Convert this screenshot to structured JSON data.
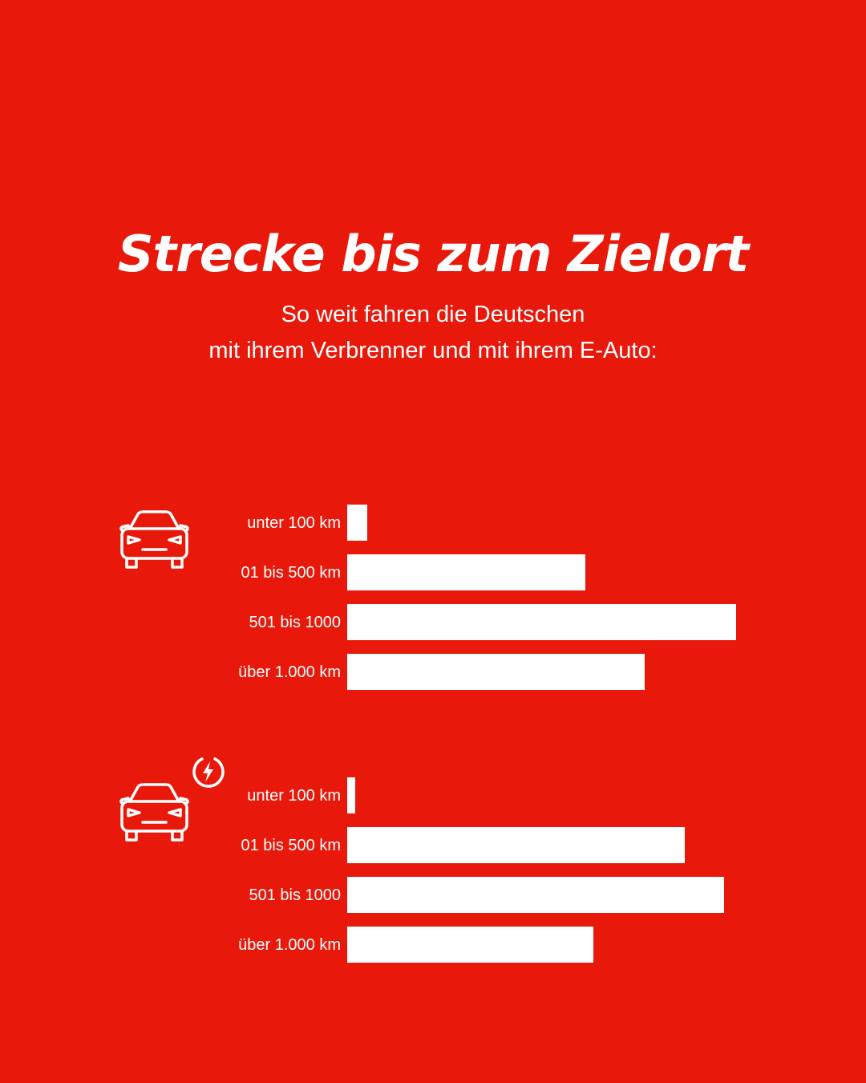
{
  "title": "Strecke bis zum Zielort",
  "subtitle_lines": [
    "So weit fahren die Deutschen",
    "mit ihrem Verbrenner und mit ihrem E-Auto:"
  ],
  "colors": {
    "background": "#e8190b",
    "bars": "#ffffff",
    "text": "#ffffff"
  },
  "chart_data": [
    {
      "type": "bar",
      "orientation": "horizontal",
      "icon": "car-icon",
      "categories": [
        "unter 100 km",
        "01 bis 500 km",
        "501 bis 1000",
        "über 1.000 km"
      ],
      "values": [
        5,
        60,
        98,
        75
      ],
      "xlim": [
        0,
        100
      ],
      "axes_visible": false,
      "grid": false
    },
    {
      "type": "bar",
      "orientation": "horizontal",
      "icon": "electric-car-icon",
      "categories": [
        "unter 100 km",
        "01 bis 500 km",
        "501 bis 1000",
        "über 1.000 km"
      ],
      "values": [
        2,
        85,
        95,
        62
      ],
      "xlim": [
        0,
        100
      ],
      "axes_visible": false,
      "grid": false
    }
  ]
}
